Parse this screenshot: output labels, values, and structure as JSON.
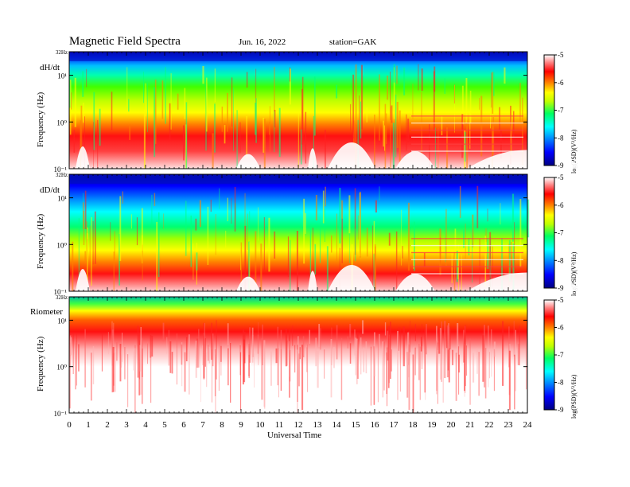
{
  "header": {
    "title": "Magnetic  Field  Spectra",
    "date": "Jun. 16, 2022",
    "station": "station=GAK"
  },
  "x_axis": {
    "label": "Universal Time",
    "ticks": [
      "0",
      "1",
      "2",
      "3",
      "4",
      "5",
      "6",
      "7",
      "8",
      "9",
      "10",
      "11",
      "12",
      "13",
      "14",
      "15",
      "16",
      "17",
      "18",
      "19",
      "20",
      "21",
      "22",
      "23",
      "24"
    ]
  },
  "colorbar": {
    "label": "log(PSD)(V²/Hz)",
    "ticks": [
      "-5",
      "-6",
      "-7",
      "-8",
      "-9"
    ]
  },
  "chart_data": [
    {
      "type": "heatmap",
      "panel_label": "dH/dt",
      "ylabel": "Frequency (Hz)",
      "y_ticks": [
        "32Hz",
        "10¹",
        "10⁰",
        "10⁻¹"
      ],
      "x_range": [
        0,
        24
      ],
      "y_range_hz": [
        0.1,
        32
      ],
      "y_scale": "log",
      "colorbar_range": [
        -9,
        -5
      ],
      "colormap": [
        "#000080",
        "#0000ff",
        "#00b0ff",
        "#00ffff",
        "#00ff80",
        "#80ff00",
        "#ffff00",
        "#ff8000",
        "#ff0000",
        "#ffffff"
      ]
    },
    {
      "type": "heatmap",
      "panel_label": "dD/dt",
      "ylabel": "Frequency (Hz)",
      "y_ticks": [
        "32Hz",
        "10¹",
        "10⁰",
        "10⁻¹"
      ],
      "x_range": [
        0,
        24
      ],
      "y_range_hz": [
        0.1,
        32
      ],
      "y_scale": "log",
      "colorbar_range": [
        -9,
        -5
      ],
      "colormap": [
        "#000080",
        "#0000ff",
        "#00b0ff",
        "#00ffff",
        "#00ff80",
        "#80ff00",
        "#ffff00",
        "#ff8000",
        "#ff0000",
        "#ffffff"
      ]
    },
    {
      "type": "heatmap",
      "panel_label": "Riometer",
      "ylabel": "Frequency (Hz)",
      "y_ticks": [
        "32Hz",
        "10¹",
        "10⁰",
        "10⁻¹"
      ],
      "x_range": [
        0,
        24
      ],
      "y_range_hz": [
        0.1,
        32
      ],
      "y_scale": "log",
      "colorbar_range": [
        -9,
        -5
      ],
      "colormap": [
        "#000080",
        "#0000ff",
        "#00b0ff",
        "#00ffff",
        "#00ff80",
        "#80ff00",
        "#ffff00",
        "#ff8000",
        "#ff0000",
        "#ffffff"
      ]
    }
  ]
}
